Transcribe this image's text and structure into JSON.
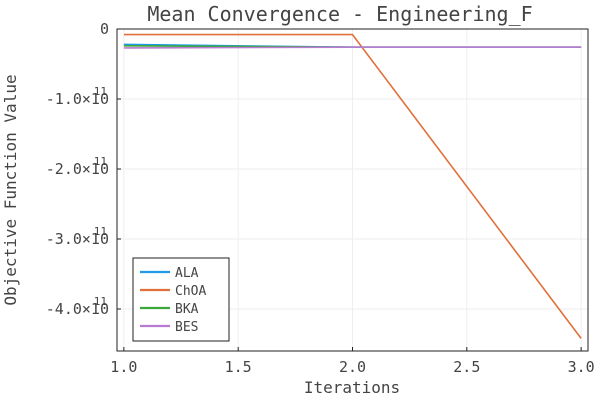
{
  "chart_data": {
    "type": "line",
    "title": "Mean Convergence - Engineering_F",
    "xlabel": "Iterations",
    "ylabel": "Objective Function Value",
    "x": [
      1.0,
      2.0,
      3.0
    ],
    "xlim": [
      0.97,
      3.03
    ],
    "ylim": [
      -460000000000,
      0
    ],
    "x_ticks": [
      {
        "value": 1.0,
        "label": "1.0"
      },
      {
        "value": 1.5,
        "label": "1.5"
      },
      {
        "value": 2.0,
        "label": "2.0"
      },
      {
        "value": 2.5,
        "label": "2.5"
      },
      {
        "value": 3.0,
        "label": "3.0"
      }
    ],
    "y_ticks": [
      {
        "value": 0,
        "label": "0",
        "exp": ""
      },
      {
        "value": -100000000000,
        "label": "-1.0×10",
        "exp": "11"
      },
      {
        "value": -200000000000,
        "label": "-2.0×10",
        "exp": "11"
      },
      {
        "value": -300000000000,
        "label": "-3.0×10",
        "exp": "11"
      },
      {
        "value": -400000000000,
        "label": "-4.0×10",
        "exp": "11"
      }
    ],
    "series": [
      {
        "name": "ALA",
        "color": "#1f9bea",
        "values": [
          -22000000000,
          -26000000000,
          -26000000000
        ]
      },
      {
        "name": "ChOA",
        "color": "#e0703a",
        "values": [
          -8000000000,
          -8000000000,
          -442000000000
        ]
      },
      {
        "name": "BKA",
        "color": "#3aa83a",
        "values": [
          -24000000000,
          -26000000000,
          -26000000000
        ]
      },
      {
        "name": "BES",
        "color": "#b97ad1",
        "values": [
          -27000000000,
          -26000000000,
          -26000000000
        ]
      }
    ],
    "grid": true,
    "legend": "bottom-left"
  }
}
